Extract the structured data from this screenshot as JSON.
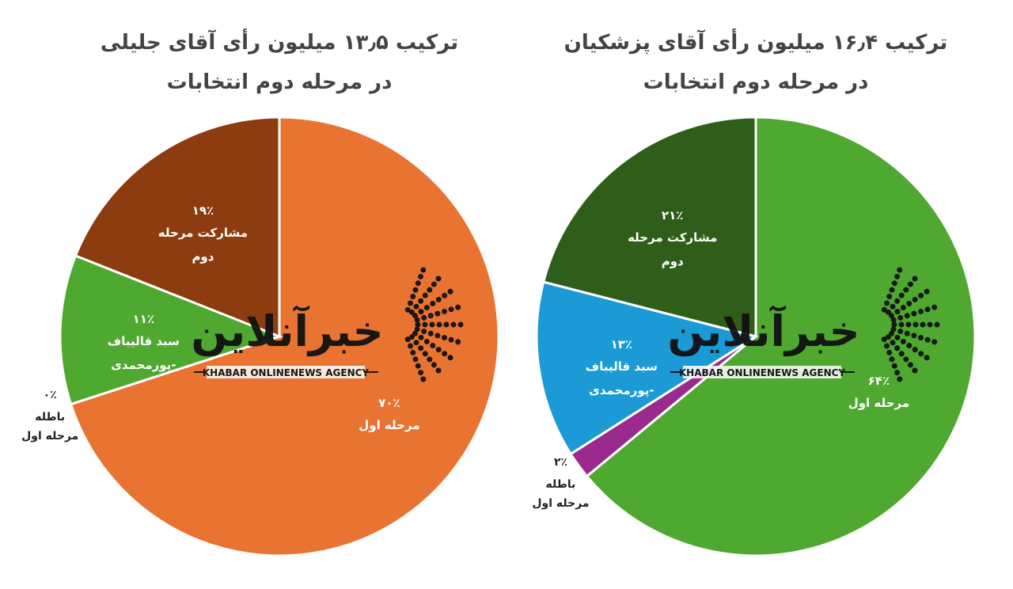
{
  "chart_data": [
    {
      "type": "pie",
      "title": "ترکیب ۱۳٫۵ میلیون رأی آقای جلیلی",
      "subtitle": "در مرحله دوم انتخابات",
      "categories": [
        "مرحله اول",
        "باطله مرحله اول",
        "سبد قالیباف -پورمحمدی",
        "مشارکت مرحله دوم"
      ],
      "values": [
        70,
        0,
        11,
        19
      ],
      "value_labels": [
        "۷۰٪",
        "۰٪",
        "۱۱٪",
        "۱۹٪"
      ],
      "colors": [
        "#e97432",
        "#9b2a8f",
        "#4fa830",
        "#8d3c10"
      ]
    },
    {
      "type": "pie",
      "title": "ترکیب ۱۶٫۴ میلیون رأی آقای پزشکیان",
      "subtitle": "در مرحله دوم انتخابات",
      "categories": [
        "مرحله اول",
        "باطله مرحله اول",
        "سبد قالیباف -پورمحمدی",
        "مشارکت مرحله دوم"
      ],
      "values": [
        64,
        2,
        13,
        21
      ],
      "value_labels": [
        "۶۴٪",
        "۲٪",
        "۱۳٪",
        "۲۱٪"
      ],
      "colors": [
        "#4fa830",
        "#9b2a8f",
        "#1b9ad6",
        "#2f5e1b"
      ]
    }
  ],
  "watermark": {
    "name": "خبرآنلاین",
    "tagline": "KHABAR ONLINENEWS AGENCY"
  }
}
